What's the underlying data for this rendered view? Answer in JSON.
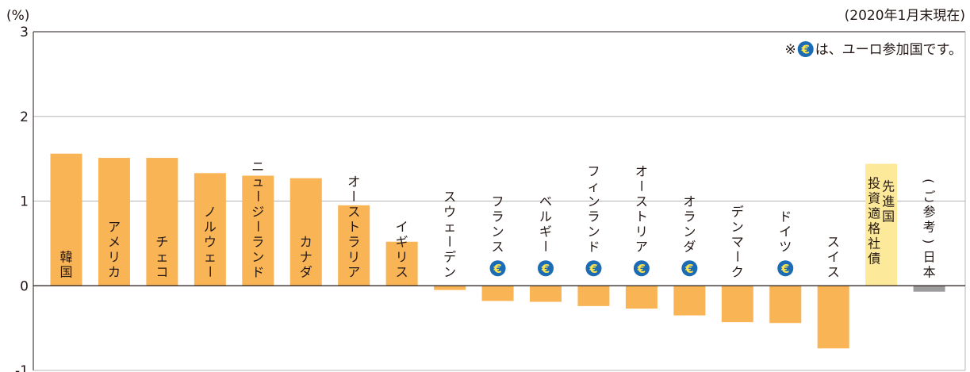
{
  "chart_data": {
    "type": "bar",
    "unit_label": "(%)",
    "date_note": "(2020年1月末現在)",
    "euro_note": {
      "prefix": "※",
      "icon": "euro-icon",
      "text": "は、ユーロ参加国です。"
    },
    "ylim": [
      -1,
      3
    ],
    "yticks": [
      "3",
      "2",
      "1",
      "0",
      "-1"
    ],
    "grid": true,
    "categories": [
      {
        "label": "韓国",
        "value": 1.56,
        "euro": false,
        "kind": "country"
      },
      {
        "label": "アメリカ",
        "value": 1.51,
        "euro": false,
        "kind": "country"
      },
      {
        "label": "チェコ",
        "value": 1.51,
        "euro": false,
        "kind": "country"
      },
      {
        "label": "ノルウェー",
        "value": 1.33,
        "euro": false,
        "kind": "country"
      },
      {
        "label": "ニュージーランド",
        "value": 1.3,
        "euro": false,
        "kind": "country"
      },
      {
        "label": "カナダ",
        "value": 1.27,
        "euro": false,
        "kind": "country"
      },
      {
        "label": "オーストラリア",
        "value": 0.95,
        "euro": false,
        "kind": "country"
      },
      {
        "label": "イギリス",
        "value": 0.52,
        "euro": false,
        "kind": "country"
      },
      {
        "label": "スウェーデン",
        "value": -0.05,
        "euro": false,
        "kind": "country"
      },
      {
        "label": "フランス",
        "value": -0.18,
        "euro": true,
        "kind": "country"
      },
      {
        "label": "ベルギー",
        "value": -0.19,
        "euro": true,
        "kind": "country"
      },
      {
        "label": "フィンランド",
        "value": -0.24,
        "euro": true,
        "kind": "country"
      },
      {
        "label": "オーストリア",
        "value": -0.27,
        "euro": true,
        "kind": "country"
      },
      {
        "label": "オランダ",
        "value": -0.35,
        "euro": true,
        "kind": "country"
      },
      {
        "label": "デンマーク",
        "value": -0.43,
        "euro": false,
        "kind": "country"
      },
      {
        "label": "ドイツ",
        "value": -0.44,
        "euro": true,
        "kind": "country"
      },
      {
        "label": "スイス",
        "value": -0.74,
        "euro": false,
        "kind": "country"
      },
      {
        "label": "先進国投資適格社債",
        "value": 1.44,
        "euro": false,
        "kind": "bond",
        "columns": [
          "先進国",
          "投資適格社債"
        ]
      },
      {
        "label": "(ご参考)日本",
        "value": -0.07,
        "euro": false,
        "kind": "reference"
      }
    ],
    "colors": {
      "country_bar": "#f8b455",
      "bond_bar": "#fde99a",
      "reference_bar": "#9c9c9c",
      "euro_circle": "#1b6bb5",
      "euro_symbol": "#ffe44d",
      "grid": "#b5b5b5",
      "axis": "#231815"
    }
  }
}
